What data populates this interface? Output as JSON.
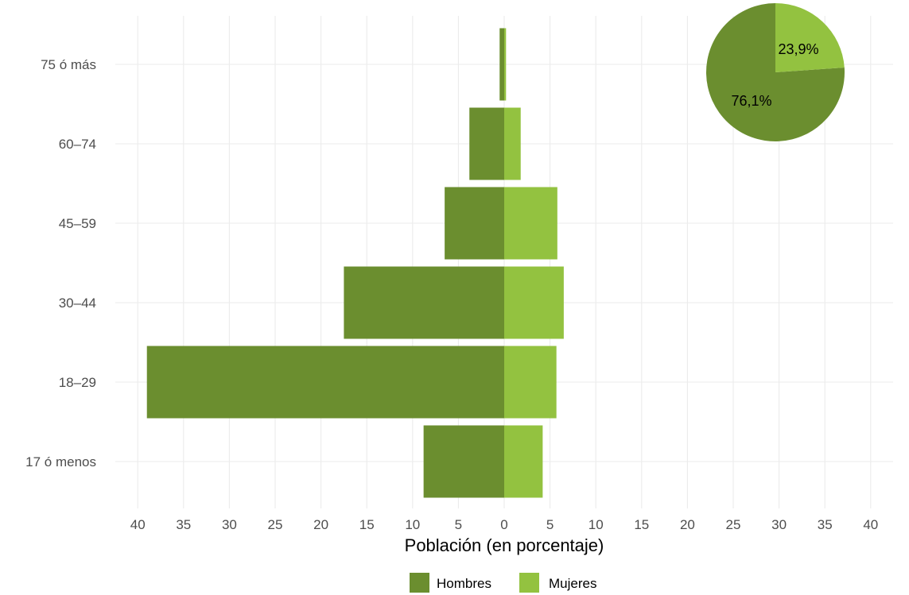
{
  "chart_data": [
    {
      "type": "bar",
      "orientation": "horizontal",
      "subtype": "population-pyramid",
      "categories": [
        "17 ó menos",
        "18–29",
        "30–44",
        "45–59",
        "60–74",
        "75 ó más"
      ],
      "series": [
        {
          "name": "Hombres",
          "values": [
            8.8,
            39.0,
            17.5,
            6.5,
            3.8,
            0.5
          ],
          "color": "#6b8e2f",
          "side": "left"
        },
        {
          "name": "Mujeres",
          "values": [
            4.2,
            5.7,
            6.5,
            5.8,
            1.8,
            0.2
          ],
          "color": "#93c240",
          "side": "right"
        }
      ],
      "xlabel": "Población (en porcentaje)",
      "ylabel": "",
      "xlim": [
        -42.5,
        42.5
      ],
      "x_ticks": [
        -40,
        -35,
        -30,
        -25,
        -20,
        -15,
        -10,
        -5,
        0,
        5,
        10,
        15,
        20,
        25,
        30,
        35,
        40
      ],
      "x_tick_labels": [
        "40",
        "35",
        "30",
        "25",
        "20",
        "15",
        "10",
        "5",
        "0",
        "5",
        "10",
        "15",
        "20",
        "25",
        "30",
        "35",
        "40"
      ],
      "grid": true,
      "legend": {
        "position": "bottom",
        "entries": [
          {
            "label": "Hombres",
            "color": "#6b8e2f"
          },
          {
            "label": "Mujeres",
            "color": "#93c240"
          }
        ]
      }
    },
    {
      "type": "pie",
      "slices": [
        {
          "name": "Hombres",
          "value": 76.1,
          "label": "76,1%",
          "color": "#6b8e2f"
        },
        {
          "name": "Mujeres",
          "value": 23.9,
          "label": "23,9%",
          "color": "#93c240"
        }
      ],
      "legend": "shared"
    }
  ]
}
